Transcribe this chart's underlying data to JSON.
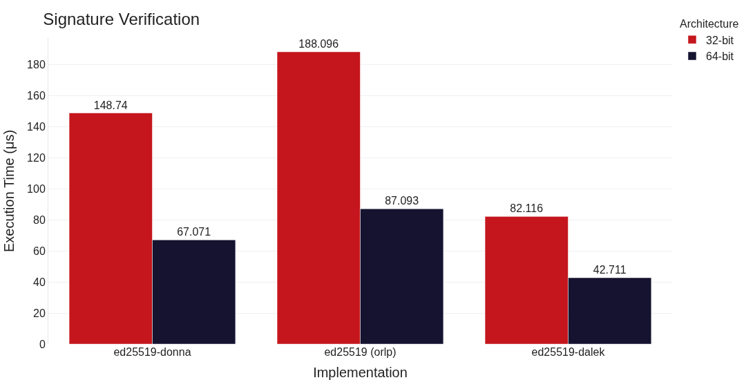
{
  "chart_data": {
    "type": "bar",
    "title": "Signature Verification",
    "xlabel": "Implementation",
    "ylabel": "Execution Time (μs)",
    "legend_title": "Architecture",
    "categories": [
      "ed25519-donna",
      "ed25519 (orlp)",
      "ed25519-dalek"
    ],
    "series": [
      {
        "name": "32-bit",
        "color": "#c4161c",
        "values": [
          148.74,
          188.096,
          82.116
        ]
      },
      {
        "name": "64-bit",
        "color": "#161330",
        "values": [
          67.071,
          87.093,
          42.711
        ]
      }
    ],
    "ylim": [
      0,
      197
    ],
    "yticks": [
      0,
      20,
      40,
      60,
      80,
      100,
      120,
      140,
      160,
      180
    ],
    "grid": "y",
    "legend": "top right",
    "data_labels": true
  }
}
